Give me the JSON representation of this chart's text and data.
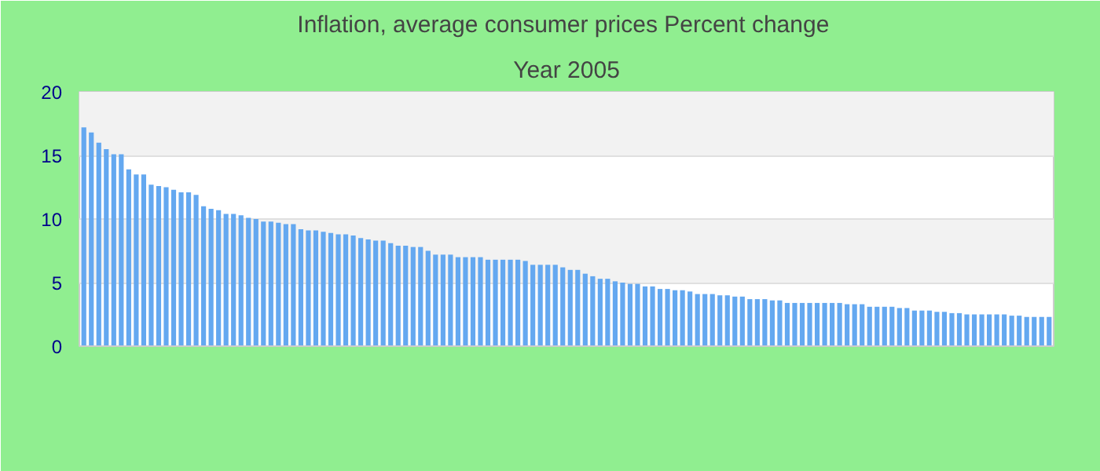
{
  "chart_data": {
    "type": "bar",
    "title": "Inflation, average consumer prices  Percent change",
    "subtitle": "Year 2005",
    "categories": [
      null,
      null,
      null,
      null,
      null,
      null,
      null,
      null,
      null,
      null,
      null,
      null,
      null,
      null,
      null,
      null,
      null,
      null,
      null,
      null,
      null,
      null,
      null,
      null,
      null,
      null,
      null,
      null,
      null,
      null,
      null,
      null,
      null,
      null,
      null,
      null,
      null,
      null,
      null,
      null,
      null,
      null,
      null,
      null,
      null,
      null,
      null,
      null,
      null,
      null,
      null,
      null,
      null,
      null,
      null,
      null,
      null,
      null,
      null,
      null,
      null,
      null,
      null,
      null,
      null,
      null,
      null,
      null,
      null,
      null,
      null,
      null,
      null,
      null,
      null,
      null,
      null,
      null,
      null,
      null,
      null,
      null,
      null,
      null,
      null,
      null,
      null,
      null,
      null,
      null,
      null,
      null,
      null,
      null,
      null,
      null,
      null,
      null,
      null,
      null,
      null,
      null,
      null,
      null,
      null,
      null,
      null,
      null,
      null,
      null,
      null,
      null,
      null,
      null,
      null,
      null,
      null,
      null,
      null,
      null,
      null,
      null,
      null,
      null,
      null,
      null,
      null,
      null,
      null,
      null
    ],
    "values": [
      17.2,
      16.8,
      16.0,
      15.5,
      15.1,
      15.1,
      13.9,
      13.5,
      13.5,
      12.7,
      12.6,
      12.5,
      12.3,
      12.1,
      12.1,
      11.9,
      11.0,
      10.8,
      10.7,
      10.4,
      10.4,
      10.3,
      10.1,
      10.0,
      9.8,
      9.8,
      9.7,
      9.6,
      9.6,
      9.2,
      9.1,
      9.1,
      9.0,
      8.9,
      8.8,
      8.8,
      8.7,
      8.5,
      8.4,
      8.3,
      8.3,
      8.1,
      7.9,
      7.9,
      7.8,
      7.8,
      7.5,
      7.2,
      7.2,
      7.2,
      7.0,
      7.0,
      7.0,
      7.0,
      6.8,
      6.8,
      6.8,
      6.8,
      6.8,
      6.7,
      6.4,
      6.4,
      6.4,
      6.4,
      6.2,
      6.0,
      6.0,
      5.7,
      5.5,
      5.3,
      5.3,
      5.1,
      5.0,
      4.9,
      4.9,
      4.7,
      4.7,
      4.5,
      4.5,
      4.4,
      4.4,
      4.3,
      4.1,
      4.1,
      4.1,
      4.0,
      4.0,
      3.9,
      3.9,
      3.7,
      3.7,
      3.7,
      3.6,
      3.6,
      3.4,
      3.4,
      3.4,
      3.4,
      3.4,
      3.4,
      3.4,
      3.4,
      3.3,
      3.3,
      3.3,
      3.1,
      3.1,
      3.1,
      3.1,
      3.0,
      3.0,
      2.8,
      2.8,
      2.8,
      2.7,
      2.7,
      2.6,
      2.6,
      2.5,
      2.5,
      2.5,
      2.5,
      2.5,
      2.5,
      2.4,
      2.4,
      2.3,
      2.3,
      2.3,
      2.3
    ],
    "color": "#64a8f0",
    "ylim": [
      0,
      20
    ],
    "yticks": [
      0,
      5,
      10,
      15,
      20
    ],
    "grid": "y"
  }
}
